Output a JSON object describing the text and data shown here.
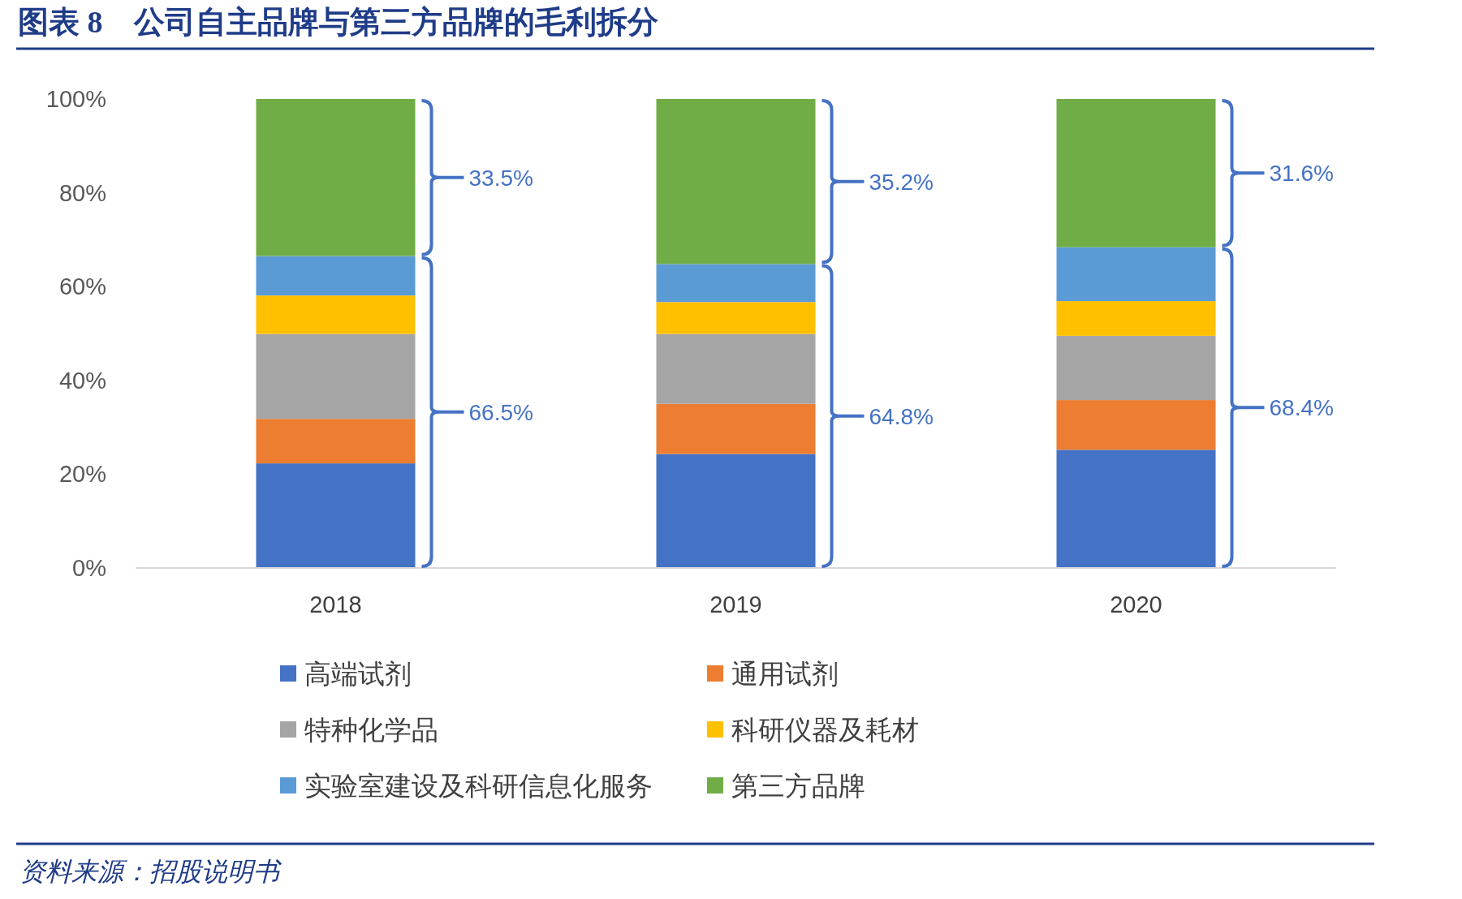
{
  "chart_data": {
    "type": "bar",
    "stacked": true,
    "title": "图表 8　公司自主品牌与第三方品牌的毛利拆分",
    "categories": [
      "2018",
      "2019",
      "2020"
    ],
    "series": [
      {
        "name": "高端试剂",
        "color": "#4472c4",
        "values": [
          22.3,
          24.3,
          25.2
        ]
      },
      {
        "name": "通用试剂",
        "color": "#ed7d31",
        "values": [
          9.5,
          10.7,
          10.6
        ]
      },
      {
        "name": "特种化学品",
        "color": "#a5a5a5",
        "values": [
          18.1,
          14.9,
          13.7
        ]
      },
      {
        "name": "科研仪器及耗材",
        "color": "#ffc000",
        "values": [
          8.2,
          6.8,
          7.4
        ]
      },
      {
        "name": "实验室建设及科研信息化服务",
        "color": "#5b9bd5",
        "values": [
          8.4,
          8.1,
          11.5
        ]
      },
      {
        "name": "第三方品牌",
        "color": "#70ad47",
        "values": [
          33.5,
          35.2,
          31.6
        ]
      }
    ],
    "ylim": [
      0,
      100
    ],
    "yticks": [
      {
        "value": 0,
        "label": "0%"
      },
      {
        "value": 20,
        "label": "20%"
      },
      {
        "value": 40,
        "label": "40%"
      },
      {
        "value": 60,
        "label": "60%"
      },
      {
        "value": 80,
        "label": "80%"
      },
      {
        "value": 100,
        "label": "100%"
      }
    ],
    "legend": "bottom",
    "annotations": [
      "66.5%",
      "33.5%",
      "64.8%",
      "35.2%",
      "68.4%",
      "31.6%",
      "资料来源：招股说明书"
    ]
  }
}
